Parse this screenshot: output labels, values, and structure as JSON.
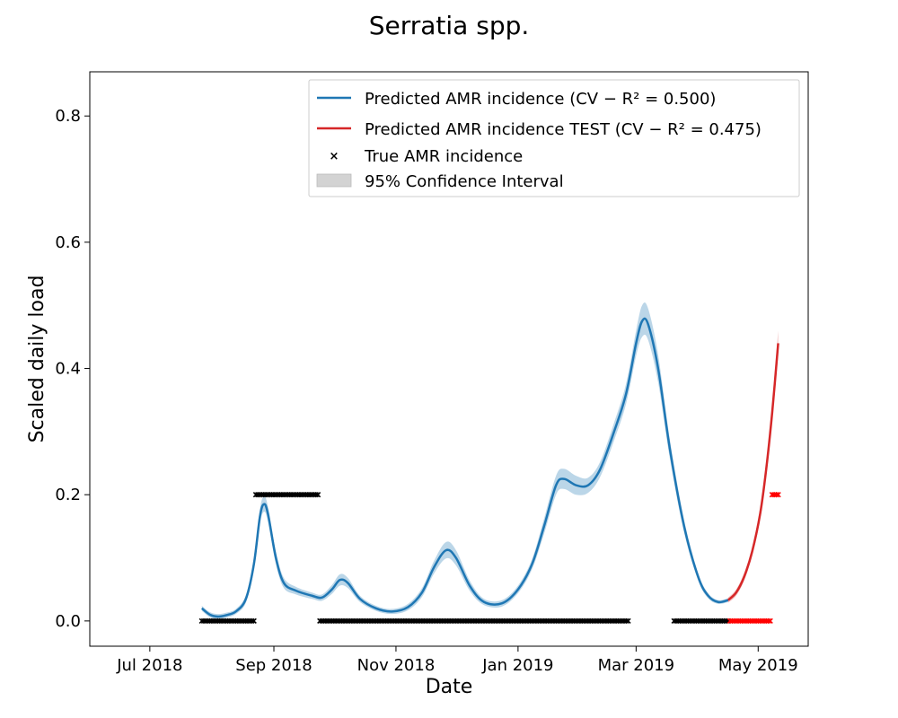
{
  "chart_data": {
    "type": "line",
    "title": "Serratia spp.",
    "xlabel": "Date",
    "ylabel": "Scaled daily load",
    "xlim": [
      "2018-06-01",
      "2019-05-26"
    ],
    "ylim": [
      -0.04,
      0.87
    ],
    "x_ticks": [
      {
        "date": "2018-07-01",
        "label": "Jul 2018"
      },
      {
        "date": "2018-09-01",
        "label": "Sep 2018"
      },
      {
        "date": "2018-11-01",
        "label": "Nov 2018"
      },
      {
        "date": "2019-01-01",
        "label": "Jan 2019"
      },
      {
        "date": "2019-03-01",
        "label": "Mar 2019"
      },
      {
        "date": "2019-05-01",
        "label": "May 2019"
      }
    ],
    "y_ticks": [
      {
        "value": 0.0,
        "label": "0.0"
      },
      {
        "value": 0.2,
        "label": "0.2"
      },
      {
        "value": 0.4,
        "label": "0.4"
      },
      {
        "value": 0.6,
        "label": "0.6"
      },
      {
        "value": 0.8,
        "label": "0.8"
      }
    ],
    "legend_position": "top-right",
    "legend": [
      {
        "label": "Predicted AMR incidence (CV − R² = 0.500)",
        "kind": "line",
        "color": "#1f77b4"
      },
      {
        "label": "Predicted AMR incidence TEST (CV − R² = 0.475)",
        "kind": "line",
        "color": "#d62728"
      },
      {
        "label": "True AMR incidence",
        "kind": "marker",
        "color": "#000000"
      },
      {
        "label": "95% Confidence Interval",
        "kind": "patch",
        "color": "#d3d3d3"
      }
    ],
    "series": [
      {
        "name": "Predicted AMR incidence",
        "color": "#1f77b4",
        "band_color": "#1f77b4",
        "points": [
          [
            "2018-07-27",
            0.02
          ],
          [
            "2018-07-31",
            0.01
          ],
          [
            "2018-08-04",
            0.007
          ],
          [
            "2018-08-08",
            0.009
          ],
          [
            "2018-08-13",
            0.015
          ],
          [
            "2018-08-18",
            0.035
          ],
          [
            "2018-08-22",
            0.09
          ],
          [
            "2018-08-25",
            0.165
          ],
          [
            "2018-08-27",
            0.185
          ],
          [
            "2018-08-29",
            0.17
          ],
          [
            "2018-09-02",
            0.1
          ],
          [
            "2018-09-06",
            0.06
          ],
          [
            "2018-09-12",
            0.048
          ],
          [
            "2018-09-20",
            0.04
          ],
          [
            "2018-09-25",
            0.037
          ],
          [
            "2018-09-30",
            0.05
          ],
          [
            "2018-10-04",
            0.065
          ],
          [
            "2018-10-08",
            0.06
          ],
          [
            "2018-10-14",
            0.035
          ],
          [
            "2018-10-22",
            0.02
          ],
          [
            "2018-10-30",
            0.015
          ],
          [
            "2018-11-07",
            0.022
          ],
          [
            "2018-11-14",
            0.045
          ],
          [
            "2018-11-20",
            0.085
          ],
          [
            "2018-11-26",
            0.112
          ],
          [
            "2018-12-01",
            0.1
          ],
          [
            "2018-12-08",
            0.055
          ],
          [
            "2018-12-15",
            0.03
          ],
          [
            "2018-12-24",
            0.028
          ],
          [
            "2019-01-01",
            0.05
          ],
          [
            "2019-01-08",
            0.09
          ],
          [
            "2019-01-14",
            0.15
          ],
          [
            "2019-01-20",
            0.215
          ],
          [
            "2019-01-24",
            0.225
          ],
          [
            "2019-01-30",
            0.215
          ],
          [
            "2019-02-05",
            0.215
          ],
          [
            "2019-02-11",
            0.24
          ],
          [
            "2019-02-18",
            0.3
          ],
          [
            "2019-02-24",
            0.36
          ],
          [
            "2019-03-01",
            0.44
          ],
          [
            "2019-03-04",
            0.475
          ],
          [
            "2019-03-07",
            0.47
          ],
          [
            "2019-03-12",
            0.4
          ],
          [
            "2019-03-18",
            0.27
          ],
          [
            "2019-03-25",
            0.15
          ],
          [
            "2019-04-01",
            0.07
          ],
          [
            "2019-04-06",
            0.04
          ],
          [
            "2019-04-11",
            0.03
          ],
          [
            "2019-04-16",
            0.033
          ]
        ],
        "band_halfwidth": [
          0.004,
          0.004,
          0.004,
          0.004,
          0.004,
          0.006,
          0.01,
          0.012,
          0.012,
          0.012,
          0.01,
          0.008,
          0.006,
          0.005,
          0.005,
          0.007,
          0.009,
          0.008,
          0.005,
          0.004,
          0.004,
          0.005,
          0.007,
          0.01,
          0.013,
          0.012,
          0.008,
          0.005,
          0.005,
          0.006,
          0.008,
          0.012,
          0.015,
          0.016,
          0.015,
          0.012,
          0.012,
          0.014,
          0.016,
          0.02,
          0.025,
          0.025,
          0.022,
          0.015,
          0.01,
          0.006,
          0.004,
          0.003,
          0.003
        ]
      },
      {
        "name": "Predicted AMR incidence TEST",
        "color": "#d62728",
        "band_color": "#d62728",
        "points": [
          [
            "2019-04-16",
            0.033
          ],
          [
            "2019-04-20",
            0.045
          ],
          [
            "2019-04-24",
            0.07
          ],
          [
            "2019-04-28",
            0.11
          ],
          [
            "2019-05-02",
            0.17
          ],
          [
            "2019-05-05",
            0.24
          ],
          [
            "2019-05-08",
            0.33
          ],
          [
            "2019-05-11",
            0.44
          ]
        ],
        "band_halfwidth": [
          0.004,
          0.005,
          0.006,
          0.007,
          0.009,
          0.011,
          0.014,
          0.02
        ]
      }
    ],
    "true_incidence": [
      {
        "name": "True AMR incidence",
        "color": "#000000",
        "start": "2018-07-27",
        "end": "2018-08-22",
        "value": 0.0
      },
      {
        "name": "True AMR incidence",
        "color": "#000000",
        "start": "2018-08-23",
        "end": "2018-09-23",
        "value": 0.2
      },
      {
        "name": "True AMR incidence",
        "color": "#000000",
        "start": "2018-09-24",
        "end": "2019-02-25",
        "value": 0.0
      },
      {
        "name": "True AMR incidence",
        "color": "#000000",
        "start": "2019-03-20",
        "end": "2019-04-16",
        "value": 0.0
      },
      {
        "name": "True AMR incidence TEST",
        "color": "#ff0000",
        "start": "2019-04-17",
        "end": "2019-05-07",
        "value": 0.0
      },
      {
        "name": "True AMR incidence TEST",
        "color": "#ff0000",
        "start": "2019-05-08",
        "end": "2019-05-11",
        "value": 0.2
      }
    ]
  }
}
